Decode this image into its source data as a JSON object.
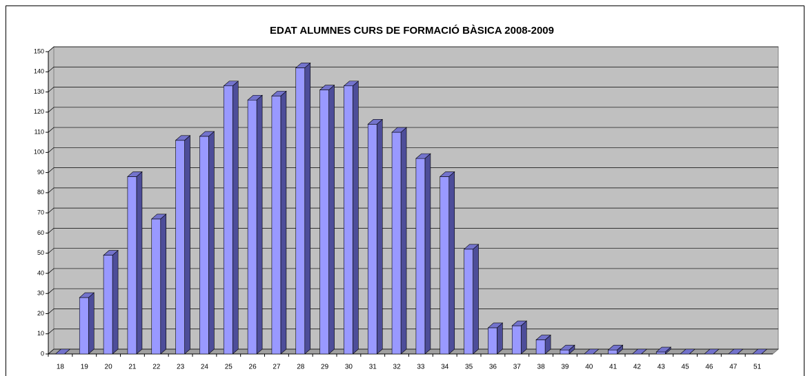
{
  "chart_data": {
    "type": "bar3d",
    "title": "EDAT ALUMNES CURS DE FORMACIÓ BÀSICA 2008-2009",
    "categories": [
      "18",
      "19",
      "20",
      "21",
      "22",
      "23",
      "24",
      "25",
      "26",
      "27",
      "28",
      "29",
      "30",
      "31",
      "32",
      "33",
      "34",
      "35",
      "36",
      "37",
      "38",
      "39",
      "40",
      "41",
      "42",
      "43",
      "45",
      "46",
      "47",
      "51"
    ],
    "values": [
      0,
      28,
      49,
      88,
      67,
      106,
      108,
      133,
      126,
      128,
      142,
      131,
      133,
      114,
      110,
      97,
      88,
      52,
      13,
      14,
      7,
      2,
      0,
      2,
      0,
      1,
      0,
      0,
      0,
      0
    ],
    "color": "#9999ff",
    "ylim": [
      0,
      150
    ],
    "yticks": [
      0,
      10,
      20,
      30,
      40,
      50,
      60,
      70,
      80,
      90,
      100,
      110,
      120,
      130,
      140,
      150
    ],
    "grid": true
  }
}
